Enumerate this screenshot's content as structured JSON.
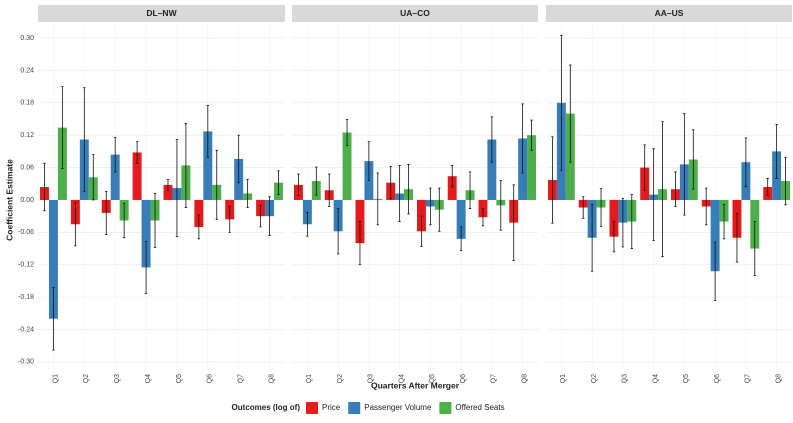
{
  "shared": {
    "y_label": "Coefficient Estimate",
    "x_label": "Quarters After Merger",
    "legend_title": "Outcomes (log of)"
  },
  "chart_data": [
    {
      "type": "bar",
      "title": "DL–NW",
      "categories": [
        "Q1",
        "Q2",
        "Q3",
        "Q4",
        "Q5",
        "Q6",
        "Q7",
        "Q8"
      ],
      "series": [
        {
          "name": "Price",
          "color": "#e41a1c",
          "values": [
            0.024,
            -0.045,
            -0.024,
            0.088,
            0.028,
            -0.05,
            -0.036,
            -0.03
          ],
          "errors": [
            0.044,
            0.04,
            0.04,
            0.02,
            0.01,
            0.022,
            0.024,
            0.02
          ]
        },
        {
          "name": "Passenger Volume",
          "color": "#377eb8",
          "values": [
            -0.22,
            0.112,
            0.084,
            -0.125,
            0.022,
            0.127,
            0.076,
            -0.03
          ],
          "errors": [
            0.058,
            0.096,
            0.032,
            0.048,
            0.09,
            0.048,
            0.044,
            0.036
          ]
        },
        {
          "name": "Offered Seats",
          "color": "#4daf4a",
          "values": [
            0.134,
            0.042,
            -0.038,
            -0.038,
            0.064,
            0.028,
            0.012,
            0.032
          ],
          "errors": [
            0.076,
            0.042,
            0.032,
            0.05,
            0.078,
            0.064,
            0.026,
            0.022
          ]
        }
      ],
      "ylim": [
        -0.315,
        0.326
      ],
      "yticks": [
        {
          "value": -0.3,
          "label": "-0.30"
        },
        {
          "value": -0.24,
          "label": "-0.24"
        },
        {
          "value": -0.18,
          "label": "-0.18"
        },
        {
          "value": -0.12,
          "label": "-0.12"
        },
        {
          "value": -0.06,
          "label": "-0.06"
        },
        {
          "value": 0,
          "label": "0.00"
        },
        {
          "value": 0.06,
          "label": "0.06"
        },
        {
          "value": 0.12,
          "label": "0.12"
        },
        {
          "value": 0.18,
          "label": "0.18"
        },
        {
          "value": 0.24,
          "label": "0.24"
        },
        {
          "value": 0.3,
          "label": "0.30"
        }
      ],
      "grid": true
    },
    {
      "type": "bar",
      "title": "UA–CO",
      "categories": [
        "Q1",
        "Q2",
        "Q3",
        "Q4",
        "Q5",
        "Q6",
        "Q7",
        "Q8"
      ],
      "series": [
        {
          "name": "Price",
          "color": "#e41a1c",
          "values": [
            0.028,
            0.018,
            -0.08,
            0.032,
            -0.058,
            0.044,
            -0.032,
            -0.042
          ],
          "errors": [
            0.02,
            0.03,
            0.04,
            0.03,
            0.028,
            0.02,
            0.016,
            0.07
          ]
        },
        {
          "name": "Passenger Volume",
          "color": "#377eb8",
          "values": [
            -0.045,
            -0.058,
            0.072,
            0.012,
            -0.012,
            -0.072,
            0.112,
            0.114
          ],
          "errors": [
            0.022,
            0.042,
            0.036,
            0.052,
            0.034,
            0.022,
            0.042,
            0.064
          ]
        },
        {
          "name": "Offered Seats",
          "color": "#4daf4a",
          "values": [
            0.035,
            0.125,
            0.002,
            0.02,
            -0.018,
            0.018,
            -0.01,
            0.12
          ],
          "errors": [
            0.026,
            0.024,
            0.048,
            0.046,
            0.04,
            0.034,
            0.046,
            0.028
          ]
        }
      ],
      "ylim": [
        -0.315,
        0.326
      ],
      "yticks": [
        {
          "value": -0.3,
          "label": "-0.30"
        },
        {
          "value": -0.24,
          "label": "-0.24"
        },
        {
          "value": -0.18,
          "label": "-0.18"
        },
        {
          "value": -0.12,
          "label": "-0.12"
        },
        {
          "value": -0.06,
          "label": "-0.06"
        },
        {
          "value": 0,
          "label": "0.00"
        },
        {
          "value": 0.06,
          "label": "0.06"
        },
        {
          "value": 0.12,
          "label": "0.12"
        },
        {
          "value": 0.18,
          "label": "0.18"
        },
        {
          "value": 0.24,
          "label": "0.24"
        },
        {
          "value": 0.3,
          "label": "0.30"
        }
      ],
      "grid": true
    },
    {
      "type": "bar",
      "title": "AA–US",
      "categories": [
        "Q1",
        "Q2",
        "Q3",
        "Q4",
        "Q5",
        "Q6",
        "Q7",
        "Q8"
      ],
      "series": [
        {
          "name": "Price",
          "color": "#e41a1c",
          "values": [
            0.037,
            -0.014,
            -0.068,
            0.06,
            0.02,
            -0.012,
            -0.07,
            0.024
          ],
          "errors": [
            0.08,
            0.02,
            0.028,
            0.042,
            0.032,
            0.034,
            0.045,
            0.016
          ]
        },
        {
          "name": "Passenger Volume",
          "color": "#377eb8",
          "values": [
            0.18,
            -0.07,
            -0.042,
            0.01,
            0.066,
            -0.132,
            0.07,
            0.09
          ],
          "errors": [
            0.125,
            0.062,
            0.045,
            0.085,
            0.094,
            0.054,
            0.045,
            0.05
          ]
        },
        {
          "name": "Offered Seats",
          "color": "#4daf4a",
          "values": [
            0.16,
            -0.014,
            -0.04,
            0.02,
            0.075,
            -0.04,
            -0.09,
            0.035
          ],
          "errors": [
            0.09,
            0.035,
            0.05,
            0.125,
            0.055,
            0.032,
            0.05,
            0.044
          ]
        }
      ],
      "ylim": [
        -0.315,
        0.326
      ],
      "yticks": [
        {
          "value": -0.3,
          "label": "-0.30"
        },
        {
          "value": -0.24,
          "label": "-0.24"
        },
        {
          "value": -0.18,
          "label": "-0.18"
        },
        {
          "value": -0.12,
          "label": "-0.12"
        },
        {
          "value": -0.06,
          "label": "-0.06"
        },
        {
          "value": 0,
          "label": "0.00"
        },
        {
          "value": 0.06,
          "label": "0.06"
        },
        {
          "value": 0.12,
          "label": "0.12"
        },
        {
          "value": 0.18,
          "label": "0.18"
        },
        {
          "value": 0.24,
          "label": "0.24"
        },
        {
          "value": 0.3,
          "label": "0.30"
        }
      ],
      "grid": true
    }
  ]
}
